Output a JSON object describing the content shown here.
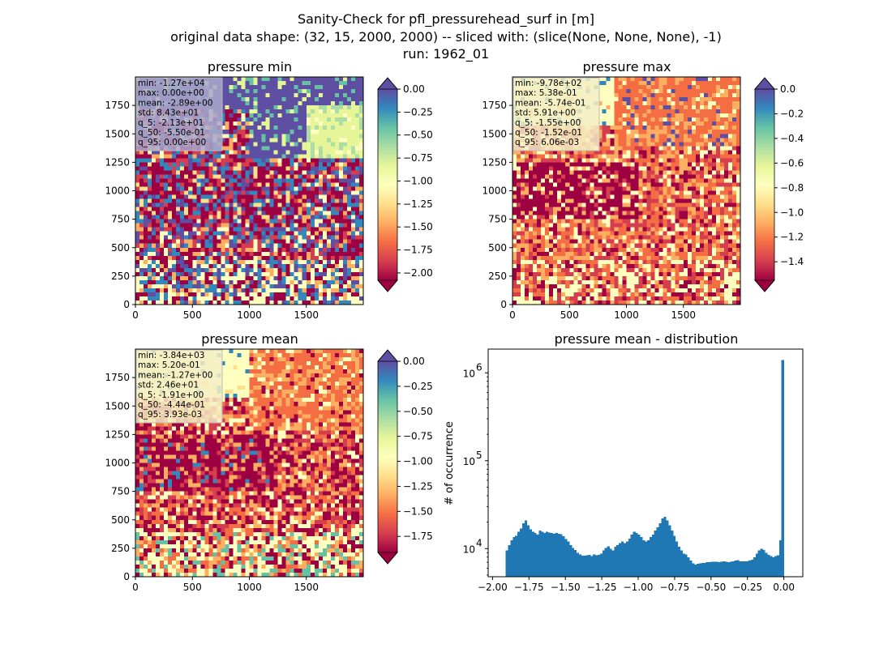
{
  "figure": {
    "title_lines": [
      "Sanity-Check for pfl_pressurehead_surf in [m]",
      "original data shape: (32, 15, 2000, 2000) -- sliced with: (slice(None, None, None), -1)",
      "run: 1962_01"
    ]
  },
  "chart_data": [
    {
      "type": "heatmap",
      "title": "pressure min",
      "colormap": "Spectral",
      "colorbar": {
        "ticks": [
          0.0,
          -0.25,
          -0.5,
          -0.75,
          -1.0,
          -1.25,
          -1.5,
          -1.75,
          -2.0
        ],
        "tick_labels": [
          "0.00",
          "−0.25",
          "−0.50",
          "−0.75",
          "−1.00",
          "−1.25",
          "−1.50",
          "−1.75",
          "−2.00"
        ],
        "range": [
          -2.08,
          0.0
        ],
        "extend": "both"
      },
      "x_ticks": [
        "0",
        "500",
        "1000",
        "1500"
      ],
      "y_ticks": [
        "0",
        "250",
        "500",
        "750",
        "1000",
        "1250",
        "1500",
        "1750"
      ],
      "xlim": [
        0,
        2000
      ],
      "ylim": [
        0,
        2000
      ],
      "stats_box": [
        "min: -1.27e+04",
        "max: 0.00e+00",
        "mean: -2.89e+00",
        "std: 8.43e+01",
        "q_5: -2.13e+01",
        "q_50: -5.50e-01",
        "q_95: 0.00e+00"
      ],
      "stats_bg": "#aaa8cc"
    },
    {
      "type": "heatmap",
      "title": "pressure max",
      "colormap": "Spectral",
      "colorbar": {
        "ticks": [
          0.0,
          -0.2,
          -0.4,
          -0.6,
          -0.8,
          -1.0,
          -1.2,
          -1.4
        ],
        "tick_labels": [
          "0.0",
          "−0.2",
          "−0.4",
          "−0.6",
          "−0.8",
          "−1.0",
          "−1.2",
          "−1.4"
        ],
        "range": [
          -1.55,
          0.0
        ],
        "extend": "both"
      },
      "x_ticks": [
        "0",
        "500",
        "1000",
        "1500"
      ],
      "y_ticks": [
        "0",
        "250",
        "500",
        "750",
        "1000",
        "1250",
        "1500",
        "1750"
      ],
      "xlim": [
        0,
        2000
      ],
      "ylim": [
        0,
        2000
      ],
      "stats_box": [
        "min: -9.78e+02",
        "max: 5.38e-01",
        "mean: -5.74e-01",
        "std: 5.91e+00",
        "q_5: -1.55e+00",
        "q_50: -1.52e-01",
        "q_95: 6.06e-03"
      ],
      "stats_bg": "#f4efc4"
    },
    {
      "type": "heatmap",
      "title": "pressure mean",
      "colormap": "Spectral",
      "colorbar": {
        "ticks": [
          0.0,
          -0.25,
          -0.5,
          -0.75,
          -1.0,
          -1.25,
          -1.5,
          -1.75
        ],
        "tick_labels": [
          "0.00",
          "−0.25",
          "−0.50",
          "−0.75",
          "−1.00",
          "−1.25",
          "−1.50",
          "−1.75"
        ],
        "range": [
          -1.91,
          0.0
        ],
        "extend": "both"
      },
      "x_ticks": [
        "0",
        "500",
        "1000",
        "1500"
      ],
      "y_ticks": [
        "0",
        "250",
        "500",
        "750",
        "1000",
        "1250",
        "1500",
        "1750"
      ],
      "xlim": [
        0,
        2000
      ],
      "ylim": [
        0,
        2000
      ],
      "stats_box": [
        "min: -3.84e+03",
        "max: 5.20e-01",
        "mean: -1.27e+00",
        "std: 2.46e+01",
        "q_5: -1.91e+00",
        "q_50: -4.44e-01",
        "q_95: 3.93e-03"
      ],
      "stats_bg": "#f4efc4"
    },
    {
      "type": "bar",
      "title": "pressure mean - distribution",
      "ylabel": "# of occurrence",
      "xlabel": "",
      "xlim": [
        -2.03,
        0.13
      ],
      "ylim_log10": [
        3.68,
        6.27
      ],
      "y_scale": "log",
      "x_ticks": [
        -2.0,
        -1.75,
        -1.5,
        -1.25,
        -1.0,
        -0.75,
        -0.5,
        -0.25,
        0.0
      ],
      "x_tick_labels": [
        "−2.00",
        "−1.75",
        "−1.50",
        "−1.25",
        "−1.00",
        "−0.75",
        "−0.50",
        "−0.25",
        "0.00"
      ],
      "y_ticks": [
        4,
        5,
        6
      ],
      "y_tick_labels": [
        "10",
        "10",
        "10"
      ],
      "y_tick_exponents": [
        "4",
        "5",
        "6"
      ],
      "bar_color": "#1f77b4",
      "x_range": [
        -1.91,
        0.0
      ],
      "values": [
        9500,
        11000,
        12500,
        13500,
        14000,
        15500,
        17000,
        19500,
        21000,
        18500,
        16500,
        15500,
        15000,
        14500,
        16000,
        15500,
        15000,
        15500,
        15200,
        15000,
        14800,
        15100,
        14800,
        14600,
        13800,
        12800,
        12000,
        11000,
        10200,
        9600,
        9000,
        8600,
        8300,
        8300,
        8400,
        8500,
        8200,
        8600,
        8400,
        8500,
        8800,
        9500,
        10200,
        10600,
        10000,
        9500,
        10500,
        11000,
        11500,
        12000,
        11500,
        12000,
        13000,
        14500,
        15500,
        15000,
        14500,
        13500,
        12500,
        12000,
        12500,
        13500,
        14500,
        16000,
        17500,
        19500,
        22000,
        23000,
        21000,
        18500,
        16000,
        14000,
        12000,
        10500,
        9500,
        8800,
        8600,
        8000,
        7300,
        6800,
        6600,
        6700,
        6800,
        6900,
        6900,
        7000,
        7000,
        7100,
        7100,
        7100,
        7000,
        7100,
        7200,
        7100,
        7000,
        7100,
        7200,
        7300,
        7400,
        7200,
        7200,
        7200,
        7200,
        7300,
        7500,
        8000,
        8800,
        9500,
        10000,
        9600,
        9000,
        8500,
        8200,
        8000,
        8200,
        8400,
        12500,
        1400000
      ]
    }
  ]
}
